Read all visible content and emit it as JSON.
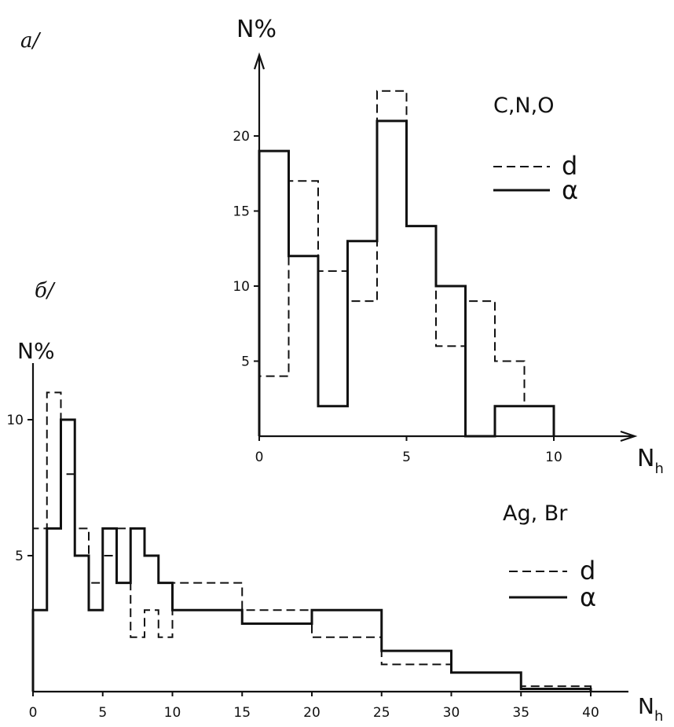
{
  "chart_data": [
    {
      "panel_label": "a/",
      "type": "histogram",
      "title": "C,N,O",
      "ylabel": "N%",
      "xlabel": "N",
      "xlabel_sub": "h",
      "xlim": [
        0,
        12
      ],
      "ylim": [
        0,
        25
      ],
      "xticks": [
        0,
        5,
        10
      ],
      "yticks": [
        5,
        10,
        15,
        20
      ],
      "bin_edges": [
        0,
        1,
        2,
        3,
        4,
        5,
        6,
        7,
        8,
        9,
        10
      ],
      "series": [
        {
          "name": "d",
          "style": "dashed",
          "values": [
            4,
            17,
            11,
            9,
            23,
            14,
            6,
            9,
            5,
            2
          ]
        },
        {
          "name": "α",
          "style": "solid",
          "values": [
            19,
            12,
            2,
            13,
            21,
            14,
            10,
            0,
            2,
            2
          ]
        }
      ],
      "legend": "right"
    },
    {
      "panel_label": "б/",
      "type": "histogram",
      "title": "Ag, Br",
      "ylabel": "N%",
      "xlabel": "N",
      "xlabel_sub": "h",
      "xlim": [
        0,
        44
      ],
      "ylim": [
        0,
        12
      ],
      "xticks": [
        0,
        5,
        10,
        15,
        20,
        25,
        30,
        35,
        40
      ],
      "yticks": [
        5,
        10
      ],
      "bin_edges": [
        0,
        1,
        2,
        3,
        4,
        5,
        6,
        7,
        8,
        9,
        10,
        15,
        20,
        25,
        30,
        35,
        40
      ],
      "series": [
        {
          "name": "d",
          "style": "dashed",
          "values": [
            6,
            11,
            8,
            6,
            4,
            5,
            6,
            2,
            3,
            2,
            4,
            3,
            2,
            1,
            0.7,
            0.2
          ]
        },
        {
          "name": "α",
          "style": "solid",
          "values": [
            3,
            6,
            10,
            5,
            3,
            6,
            4,
            6,
            5,
            4,
            3,
            2.5,
            3,
            1.5,
            0.7,
            0.1
          ]
        }
      ],
      "legend": "right"
    }
  ]
}
